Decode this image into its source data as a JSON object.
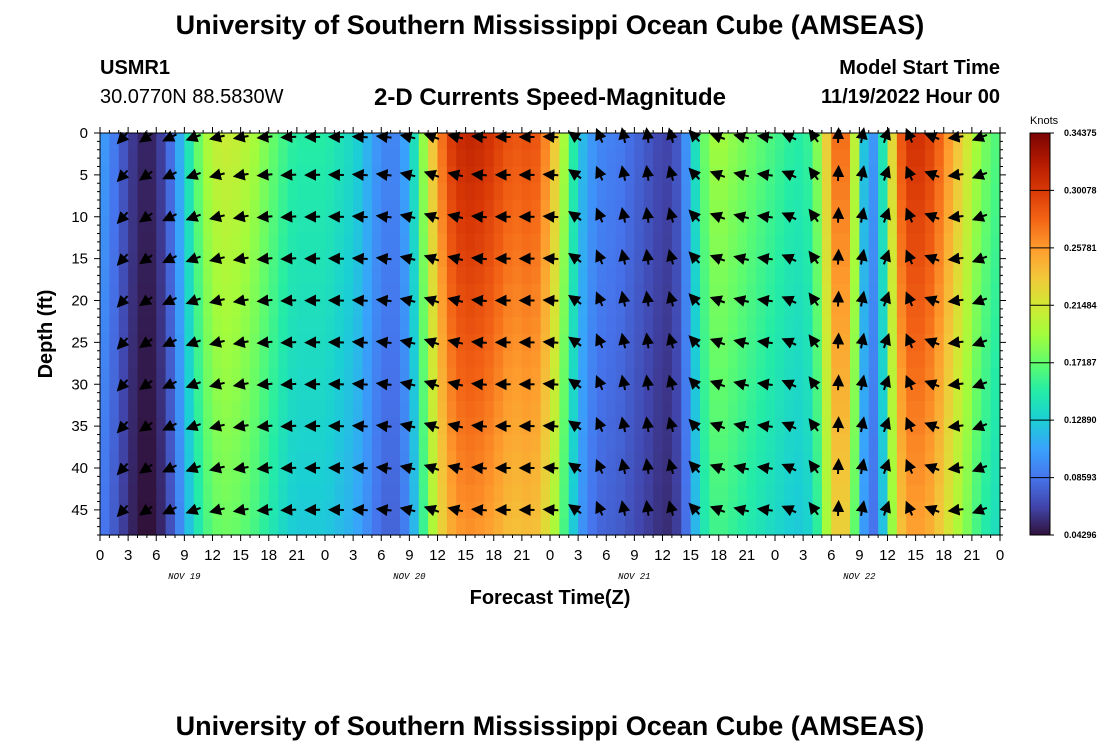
{
  "header": {
    "title_top": "University of Southern Mississippi Ocean Cube (AMSEAS)",
    "station": "USMR1",
    "coords": "30.0770N  88.5830W",
    "subtitle": "2-D Currents Speed-Magnitude",
    "model_start_label": "Model Start Time",
    "model_start_value": "11/19/2022 Hour 00",
    "title_bottom": "University of Southern Mississippi Ocean Cube (AMSEAS)"
  },
  "colors": {
    "arrow": "#000000",
    "colormap": [
      "#30123b",
      "#4145ab",
      "#4675ed",
      "#39a2fc",
      "#1bcfd4",
      "#24eca6",
      "#61fc6c",
      "#a4fc3b",
      "#d1e834",
      "#f3c63a",
      "#fe9b2d",
      "#f36315",
      "#d93806",
      "#b11901",
      "#7a0403"
    ]
  },
  "chart_data": {
    "type": "heatmap",
    "title": "2-D Currents Speed-Magnitude",
    "xlabel": "Forecast Time(Z)",
    "ylabel": "Depth (ft)",
    "x_hours_range": [
      0,
      96
    ],
    "x_ticks": [
      "0",
      "3",
      "6",
      "9",
      "12",
      "15",
      "18",
      "21",
      "0",
      "3",
      "6",
      "9",
      "12",
      "15",
      "18",
      "21",
      "0",
      "3",
      "6",
      "9",
      "12",
      "15",
      "18",
      "21",
      "0",
      "3",
      "6",
      "9",
      "12",
      "15",
      "18",
      "21",
      "0"
    ],
    "day_labels": [
      "NOV 19",
      "NOV 20",
      "NOV 21",
      "NOV 22"
    ],
    "y_ticks": [
      "0",
      "5",
      "10",
      "15",
      "20",
      "25",
      "30",
      "35",
      "40",
      "45"
    ],
    "y_range_ft": [
      0,
      48
    ],
    "colorbar": {
      "title": "Knots",
      "labels": [
        "0.34375",
        "0.30078",
        "0.25781",
        "0.21484",
        "0.17187",
        "0.12890",
        "0.08593",
        "0.04296"
      ],
      "range": [
        0.04296,
        0.34375
      ]
    },
    "speed_profile_knots": [
      {
        "h": 0,
        "s": 0.1
      },
      {
        "h": 1,
        "s": 0.09
      },
      {
        "h": 2,
        "s": 0.075
      },
      {
        "h": 3,
        "s": 0.06
      },
      {
        "h": 4,
        "s": 0.05
      },
      {
        "h": 5,
        "s": 0.045
      },
      {
        "h": 6,
        "s": 0.05
      },
      {
        "h": 7,
        "s": 0.065
      },
      {
        "h": 8,
        "s": 0.09
      },
      {
        "h": 9,
        "s": 0.12
      },
      {
        "h": 10,
        "s": 0.15
      },
      {
        "h": 11,
        "s": 0.175
      },
      {
        "h": 12,
        "s": 0.19
      },
      {
        "h": 13,
        "s": 0.195
      },
      {
        "h": 14,
        "s": 0.195
      },
      {
        "h": 15,
        "s": 0.19
      },
      {
        "h": 16,
        "s": 0.185
      },
      {
        "h": 17,
        "s": 0.175
      },
      {
        "h": 18,
        "s": 0.165
      },
      {
        "h": 19,
        "s": 0.155
      },
      {
        "h": 20,
        "s": 0.145
      },
      {
        "h": 21,
        "s": 0.14
      },
      {
        "h": 22,
        "s": 0.14
      },
      {
        "h": 23,
        "s": 0.14
      },
      {
        "h": 24,
        "s": 0.14
      },
      {
        "h": 25,
        "s": 0.135
      },
      {
        "h": 26,
        "s": 0.13
      },
      {
        "h": 27,
        "s": 0.125
      },
      {
        "h": 28,
        "s": 0.115
      },
      {
        "h": 29,
        "s": 0.1
      },
      {
        "h": 30,
        "s": 0.09
      },
      {
        "h": 31,
        "s": 0.085
      },
      {
        "h": 32,
        "s": 0.09
      },
      {
        "h": 33,
        "s": 0.11
      },
      {
        "h": 34,
        "s": 0.15
      },
      {
        "h": 35,
        "s": 0.2
      },
      {
        "h": 36,
        "s": 0.24
      },
      {
        "h": 37,
        "s": 0.27
      },
      {
        "h": 38,
        "s": 0.285
      },
      {
        "h": 39,
        "s": 0.29
      },
      {
        "h": 40,
        "s": 0.29
      },
      {
        "h": 41,
        "s": 0.285
      },
      {
        "h": 42,
        "s": 0.28
      },
      {
        "h": 43,
        "s": 0.27
      },
      {
        "h": 44,
        "s": 0.265
      },
      {
        "h": 45,
        "s": 0.265
      },
      {
        "h": 46,
        "s": 0.27
      },
      {
        "h": 47,
        "s": 0.26
      },
      {
        "h": 48,
        "s": 0.235
      },
      {
        "h": 49,
        "s": 0.2
      },
      {
        "h": 50,
        "s": 0.16
      },
      {
        "h": 51,
        "s": 0.12
      },
      {
        "h": 52,
        "s": 0.1
      },
      {
        "h": 53,
        "s": 0.09
      },
      {
        "h": 54,
        "s": 0.085
      },
      {
        "h": 55,
        "s": 0.085
      },
      {
        "h": 56,
        "s": 0.08
      },
      {
        "h": 57,
        "s": 0.075
      },
      {
        "h": 58,
        "s": 0.07
      },
      {
        "h": 59,
        "s": 0.065
      },
      {
        "h": 60,
        "s": 0.06
      },
      {
        "h": 61,
        "s": 0.06
      },
      {
        "h": 62,
        "s": 0.075
      },
      {
        "h": 63,
        "s": 0.11
      },
      {
        "h": 64,
        "s": 0.15
      },
      {
        "h": 65,
        "s": 0.175
      },
      {
        "h": 66,
        "s": 0.18
      },
      {
        "h": 67,
        "s": 0.175
      },
      {
        "h": 68,
        "s": 0.17
      },
      {
        "h": 69,
        "s": 0.165
      },
      {
        "h": 70,
        "s": 0.16
      },
      {
        "h": 71,
        "s": 0.155
      },
      {
        "h": 72,
        "s": 0.15
      },
      {
        "h": 73,
        "s": 0.145
      },
      {
        "h": 74,
        "s": 0.14
      },
      {
        "h": 75,
        "s": 0.14
      },
      {
        "h": 76,
        "s": 0.15
      },
      {
        "h": 77,
        "s": 0.19
      },
      {
        "h": 78,
        "s": 0.24
      },
      {
        "h": 79,
        "s": 0.27
      },
      {
        "h": 80,
        "s": 0.24
      },
      {
        "h": 81,
        "s": 0.14
      },
      {
        "h": 82,
        "s": 0.09
      },
      {
        "h": 83,
        "s": 0.1
      },
      {
        "h": 84,
        "s": 0.17
      },
      {
        "h": 85,
        "s": 0.25
      },
      {
        "h": 86,
        "s": 0.28
      },
      {
        "h": 87,
        "s": 0.285
      },
      {
        "h": 88,
        "s": 0.28
      },
      {
        "h": 89,
        "s": 0.27
      },
      {
        "h": 90,
        "s": 0.25
      },
      {
        "h": 91,
        "s": 0.23
      },
      {
        "h": 92,
        "s": 0.21
      },
      {
        "h": 93,
        "s": 0.19
      },
      {
        "h": 94,
        "s": 0.17
      },
      {
        "h": 95,
        "s": 0.16
      },
      {
        "h": 96,
        "s": 0.15
      }
    ],
    "direction_profile_deg": [
      {
        "h": 0,
        "d": 120
      },
      {
        "h": 6,
        "d": 150
      },
      {
        "h": 12,
        "d": 165
      },
      {
        "h": 18,
        "d": 175
      },
      {
        "h": 24,
        "d": 180
      },
      {
        "h": 30,
        "d": 185
      },
      {
        "h": 36,
        "d": 200
      },
      {
        "h": 42,
        "d": 180
      },
      {
        "h": 48,
        "d": 180
      },
      {
        "h": 54,
        "d": 255
      },
      {
        "h": 60,
        "d": 265
      },
      {
        "h": 66,
        "d": 200
      },
      {
        "h": 72,
        "d": 185
      },
      {
        "h": 76,
        "d": 230
      },
      {
        "h": 78,
        "d": 270
      },
      {
        "h": 84,
        "d": 290
      },
      {
        "h": 90,
        "d": 180
      },
      {
        "h": 96,
        "d": 150
      }
    ]
  }
}
